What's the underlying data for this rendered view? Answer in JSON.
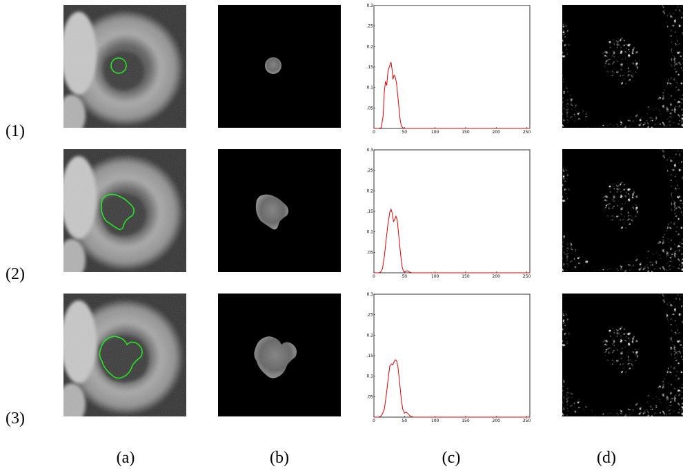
{
  "row_labels": [
    "(1)",
    "(2)",
    "(3)"
  ],
  "column_labels": [
    "(a)",
    "(b)",
    "(c)",
    "(d)"
  ],
  "colors": {
    "contour": "#22ee22",
    "curve": "#dd0000",
    "axis": "#000000"
  },
  "chart_data": [
    {
      "type": "line",
      "xlim": [
        0,
        255
      ],
      "ylim": [
        0,
        0.3
      ],
      "xticks": [
        "0",
        "50",
        "100",
        "150",
        "200",
        "250"
      ],
      "yticks": [
        "0.05",
        "0.1",
        "0.15",
        "0.2",
        "0.25",
        "0.3"
      ],
      "x": [
        0,
        8,
        12,
        15,
        17,
        19,
        21,
        23,
        25,
        27,
        28,
        30,
        31,
        33,
        35,
        37,
        39,
        41,
        43,
        45,
        48,
        50,
        55,
        60,
        100,
        150,
        200,
        255
      ],
      "series": [
        {
          "values": [
            0,
            0,
            0.002,
            0.03,
            0.09,
            0.115,
            0.105,
            0.14,
            0.15,
            0.158,
            0.162,
            0.14,
            0.12,
            0.13,
            0.125,
            0.11,
            0.08,
            0.05,
            0.02,
            0.005,
            0.001,
            0,
            0,
            0,
            0,
            0,
            0,
            0
          ]
        }
      ]
    },
    {
      "type": "line",
      "xlim": [
        0,
        255
      ],
      "ylim": [
        0,
        0.3
      ],
      "xticks": [
        "0",
        "50",
        "100",
        "150",
        "200",
        "250"
      ],
      "yticks": [
        "0.05",
        "0.1",
        "0.15",
        "0.2",
        "0.25",
        "0.3"
      ],
      "x": [
        0,
        8,
        11,
        14,
        17,
        20,
        23,
        26,
        28,
        30,
        32,
        34,
        36,
        38,
        40,
        42,
        44,
        46,
        48,
        50,
        52,
        55,
        58,
        62,
        100,
        150,
        200,
        255
      ],
      "series": [
        {
          "values": [
            0,
            0,
            0.002,
            0.01,
            0.04,
            0.08,
            0.12,
            0.148,
            0.155,
            0.145,
            0.125,
            0.13,
            0.138,
            0.13,
            0.1,
            0.07,
            0.04,
            0.015,
            0.005,
            0.001,
            0.004,
            0.005,
            0.002,
            0,
            0,
            0,
            0,
            0
          ]
        }
      ]
    },
    {
      "type": "line",
      "xlim": [
        0,
        255
      ],
      "ylim": [
        0,
        0.3
      ],
      "xticks": [
        "0",
        "50",
        "100",
        "150",
        "200",
        "250"
      ],
      "yticks": [
        "0.05",
        "0.1",
        "0.15",
        "0.2",
        "0.25",
        "0.3"
      ],
      "x": [
        0,
        8,
        11,
        14,
        17,
        20,
        23,
        26,
        29,
        31,
        33,
        35,
        37,
        39,
        41,
        43,
        45,
        47,
        50,
        53,
        56,
        59,
        62,
        65,
        100,
        150,
        200,
        255
      ],
      "series": [
        {
          "values": [
            0,
            0,
            0.002,
            0.008,
            0.02,
            0.05,
            0.09,
            0.125,
            0.13,
            0.128,
            0.135,
            0.14,
            0.138,
            0.125,
            0.1,
            0.07,
            0.04,
            0.02,
            0.01,
            0.012,
            0.008,
            0.003,
            0.001,
            0,
            0,
            0,
            0,
            0
          ]
        }
      ]
    }
  ]
}
